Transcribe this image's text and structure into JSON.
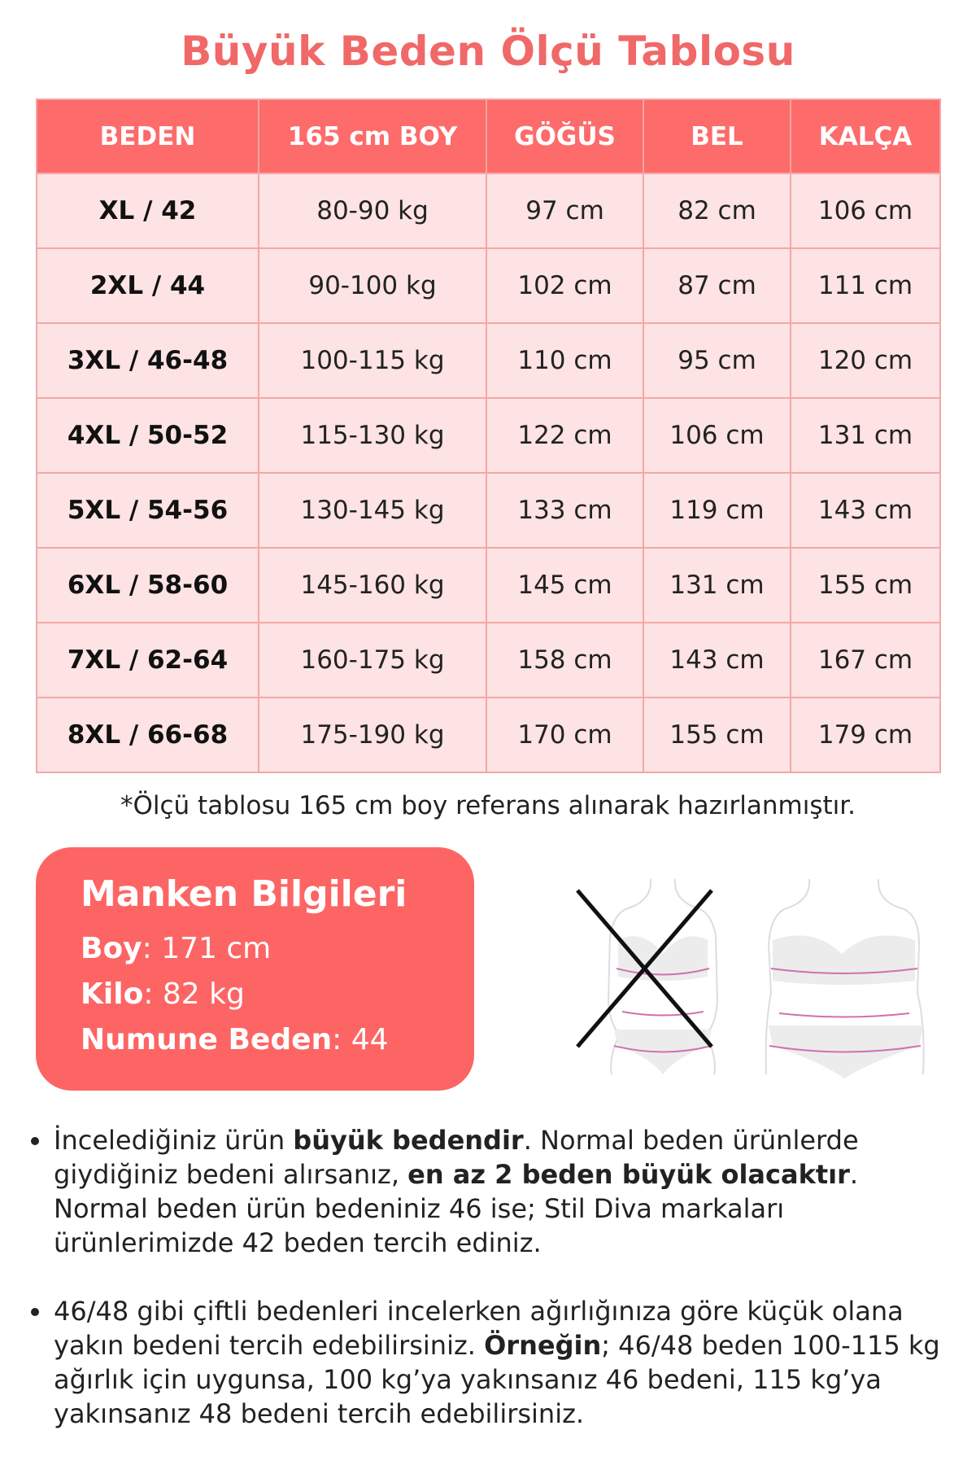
{
  "title": "Büyük Beden Ölçü Tablosu",
  "table": {
    "headers": [
      "BEDEN",
      "165 cm BOY",
      "GÖĞÜS",
      "BEL",
      "KALÇA"
    ],
    "rows": [
      [
        "XL / 42",
        "80-90 kg",
        "97 cm",
        "82 cm",
        "106 cm"
      ],
      [
        "2XL / 44",
        "90-100 kg",
        "102 cm",
        "87 cm",
        "111 cm"
      ],
      [
        "3XL / 46-48",
        "100-115 kg",
        "110 cm",
        "95 cm",
        "120 cm"
      ],
      [
        "4XL / 50-52",
        "115-130 kg",
        "122 cm",
        "106 cm",
        "131 cm"
      ],
      [
        "5XL / 54-56",
        "130-145 kg",
        "133 cm",
        "119 cm",
        "143 cm"
      ],
      [
        "6XL / 58-60",
        "145-160 kg",
        "145 cm",
        "131 cm",
        "155 cm"
      ],
      [
        "7XL / 62-64",
        "160-175 kg",
        "158 cm",
        "143 cm",
        "167 cm"
      ],
      [
        "8XL / 66-68",
        "175-190 kg",
        "170 cm",
        "155 cm",
        "179 cm"
      ]
    ]
  },
  "note": "*Ölçü tablosu 165 cm boy referans alınarak hazırlanmıştır.",
  "manken": {
    "title": "Manken Bilgileri",
    "boy_label": "Boy",
    "boy": ": 171 cm",
    "kilo_label": "Kilo",
    "kilo": ": 82 kg",
    "numune_label": "Numune Beden",
    "numune": ": 44"
  },
  "colors": {
    "accent": "#fd6b6b",
    "cell": "#fde3e3"
  },
  "bullets": [
    {
      "p1": "İncelediğiniz ürün ",
      "b1": "büyük bedendir",
      "p2": ". Normal beden ürünlerde giydiğiniz bedeni alırsanız, ",
      "b2": "en az 2 beden büyük olacaktır",
      "p3": ". Normal beden ürün bedeniniz 46 ise; Stil Diva markaları ürünlerimizde 42 beden tercih ediniz."
    },
    {
      "p1": "46/48 gibi çiftli bedenleri incelerken ağırlığınıza göre küçük olana yakın bedeni tercih edebilirsiniz. ",
      "b1": "Örneğin",
      "p2": "; 46/48 beden 100-115 kg ağırlık için uygunsa, 100 kg’ya yakınsanız 46 bedeni, 115 kg’ya yakınsanız 48 bedeni tercih edebilirsiniz."
    }
  ]
}
